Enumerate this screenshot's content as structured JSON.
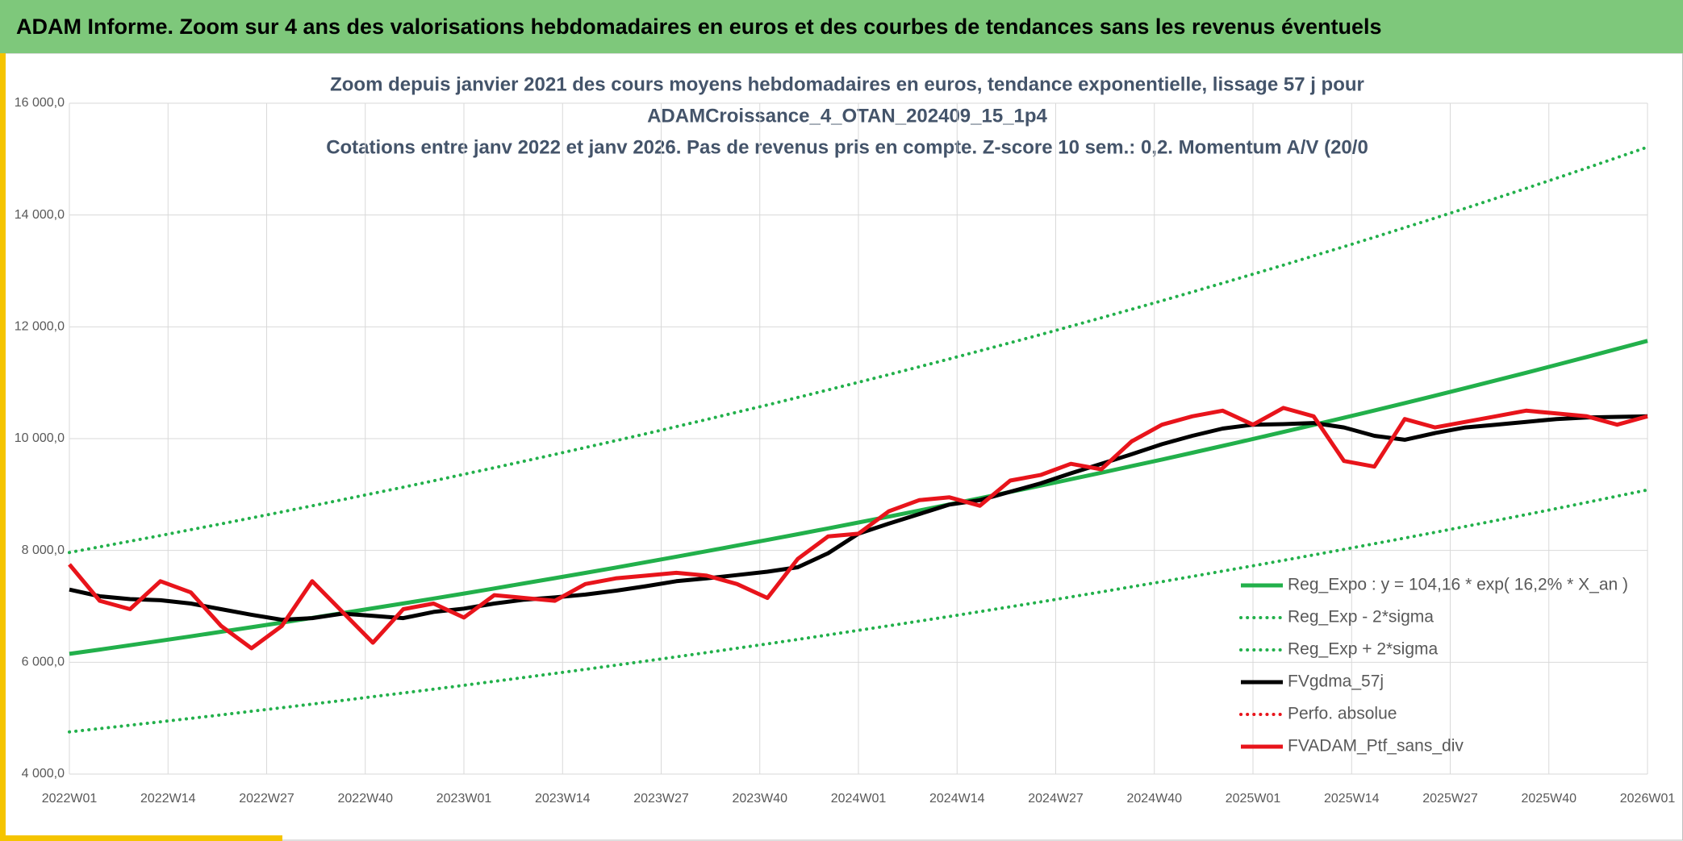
{
  "header": {
    "title": "ADAM Informe. Zoom sur 4 ans des valorisations hebdomadaires en euros et des courbes de tendances sans les revenus éventuels"
  },
  "chart_data": {
    "type": "line",
    "title_lines": [
      "Zoom depuis janvier 2021 des cours moyens hebdomadaires en euros, tendance exponentielle, lissage 57 j pour",
      "ADAMCroissance_4_OTAN_202409_15_1p4",
      "Cotations entre janv 2022 et janv 2026. Pas de revenus pris en compte. Z-score 10 sem.: 0,2. Momentum A/V (20/0"
    ],
    "x": [
      0,
      4,
      8,
      12,
      16,
      20,
      24,
      28,
      32,
      36,
      40,
      44,
      48,
      52,
      56,
      60,
      64,
      68,
      72,
      76,
      80,
      84,
      88,
      92,
      96,
      100,
      104,
      108,
      112,
      116,
      120,
      124,
      128,
      132,
      136,
      140,
      144,
      148,
      152,
      156,
      160,
      164,
      168,
      172,
      176,
      180,
      184,
      188,
      192,
      196,
      200,
      204,
      208
    ],
    "xlim": [
      0,
      208
    ],
    "xticks": [
      {
        "value": 0,
        "label": "2022W01"
      },
      {
        "value": 13,
        "label": "2022W14"
      },
      {
        "value": 26,
        "label": "2022W27"
      },
      {
        "value": 39,
        "label": "2022W40"
      },
      {
        "value": 52,
        "label": "2023W01"
      },
      {
        "value": 65,
        "label": "2023W14"
      },
      {
        "value": 78,
        "label": "2023W27"
      },
      {
        "value": 91,
        "label": "2023W40"
      },
      {
        "value": 104,
        "label": "2024W01"
      },
      {
        "value": 117,
        "label": "2024W14"
      },
      {
        "value": 130,
        "label": "2024W27"
      },
      {
        "value": 143,
        "label": "2024W40"
      },
      {
        "value": 156,
        "label": "2025W01"
      },
      {
        "value": 169,
        "label": "2025W14"
      },
      {
        "value": 182,
        "label": "2025W27"
      },
      {
        "value": 195,
        "label": "2025W40"
      },
      {
        "value": 208,
        "label": "2026W01"
      }
    ],
    "ylim": [
      4000,
      16000
    ],
    "yticks": [
      {
        "value": 4000,
        "label": "4 000,0"
      },
      {
        "value": 6000,
        "label": "6 000,0"
      },
      {
        "value": 8000,
        "label": "8 000,0"
      },
      {
        "value": 10000,
        "label": "10 000,0"
      },
      {
        "value": 12000,
        "label": "12 000,0"
      },
      {
        "value": 14000,
        "label": "14 000,0"
      },
      {
        "value": 16000,
        "label": "16 000,0"
      }
    ],
    "grid": true,
    "legend": "right",
    "series": [
      {
        "name": "Reg_Expo : y = 104,16 * exp( 16,2% *  X_an )",
        "color": "#22b04b",
        "style": "solid",
        "values": [
          6150,
          6227,
          6305,
          6384,
          6464,
          6545,
          6627,
          6710,
          6794,
          6879,
          6965,
          7052,
          7140,
          7229,
          7320,
          7412,
          7505,
          7599,
          7694,
          7790,
          7888,
          7987,
          8087,
          8188,
          8291,
          8395,
          8500,
          8606,
          8714,
          8823,
          8934,
          9046,
          9159,
          9274,
          9390,
          9508,
          9627,
          9748,
          9870,
          9994,
          10119,
          10246,
          10374,
          10504,
          10636,
          10769,
          10904,
          11041,
          11179,
          11319,
          11461,
          11605,
          11750
        ]
      },
      {
        "name": "Reg_Exp - 2*sigma",
        "color": "#22b04b",
        "style": "dotted",
        "values": [
          4754,
          4813,
          4874,
          4935,
          4997,
          5059,
          5123,
          5187,
          5252,
          5317,
          5384,
          5451,
          5519,
          5588,
          5658,
          5729,
          5801,
          5874,
          5947,
          6022,
          6097,
          6174,
          6251,
          6329,
          6409,
          6489,
          6571,
          6652,
          6736,
          6820,
          6906,
          6993,
          7080,
          7169,
          7258,
          7350,
          7442,
          7535,
          7630,
          7725,
          7822,
          7920,
          8019,
          8120,
          8222,
          8324,
          8429,
          8535,
          8641,
          8750,
          8859,
          8971,
          9083
        ]
      },
      {
        "name": "Reg_Exp + 2*sigma",
        "color": "#22b04b",
        "style": "dotted",
        "values": [
          7964,
          8064,
          8165,
          8267,
          8371,
          8476,
          8582,
          8689,
          8798,
          8908,
          9020,
          9132,
          9246,
          9362,
          9479,
          9599,
          9719,
          9841,
          9964,
          10088,
          10215,
          10343,
          10473,
          10603,
          10737,
          10872,
          11008,
          11145,
          11285,
          11426,
          11570,
          11715,
          11861,
          12010,
          12160,
          12313,
          12467,
          12624,
          12782,
          12942,
          13104,
          13269,
          13434,
          13603,
          13774,
          13946,
          14121,
          14298,
          14477,
          14658,
          14842,
          15028,
          15216
        ]
      },
      {
        "name": "FVgdma_57j",
        "color": "#000000",
        "style": "solid",
        "values": [
          7300,
          7180,
          7130,
          7110,
          7050,
          6950,
          6850,
          6760,
          6790,
          6870,
          6830,
          6790,
          6900,
          6960,
          7050,
          7120,
          7160,
          7210,
          7280,
          7360,
          7450,
          7500,
          7560,
          7620,
          7700,
          7950,
          8300,
          8480,
          8650,
          8820,
          8900,
          9050,
          9200,
          9380,
          9550,
          9720,
          9900,
          10050,
          10180,
          10250,
          10260,
          10280,
          10200,
          10050,
          9980,
          10100,
          10200,
          10250,
          10300,
          10350,
          10380,
          10390,
          10400
        ]
      },
      {
        "name": "Perfo. absolue",
        "color": "#e8141b",
        "style": "dotted",
        "values": [
          null,
          null,
          null,
          null,
          null,
          null,
          null,
          null,
          null,
          null,
          null,
          null,
          null,
          null,
          null,
          null,
          null,
          null,
          null,
          null,
          null,
          null,
          null,
          null,
          null,
          null,
          null,
          null,
          null,
          null,
          null,
          null,
          null,
          null,
          null,
          null,
          null,
          null,
          null,
          null,
          null,
          null,
          null,
          null,
          null,
          null,
          null,
          null,
          null,
          null,
          null,
          null,
          null
        ]
      },
      {
        "name": "FVADAM_Ptf_sans_div",
        "color": "#e8141b",
        "style": "solid",
        "values": [
          7750,
          7100,
          6950,
          7450,
          7250,
          6650,
          6250,
          6650,
          7450,
          6900,
          6350,
          6950,
          7050,
          6800,
          7200,
          7150,
          7100,
          7400,
          7500,
          7550,
          7600,
          7550,
          7400,
          7150,
          7850,
          8250,
          8300,
          8700,
          8900,
          8950,
          8800,
          9250,
          9350,
          9550,
          9450,
          9950,
          10250,
          10400,
          10500,
          10250,
          10550,
          10400,
          9600,
          9500,
          10350,
          10200,
          10300,
          10400,
          10500,
          10450,
          10400,
          10250,
          10400
        ]
      }
    ]
  }
}
